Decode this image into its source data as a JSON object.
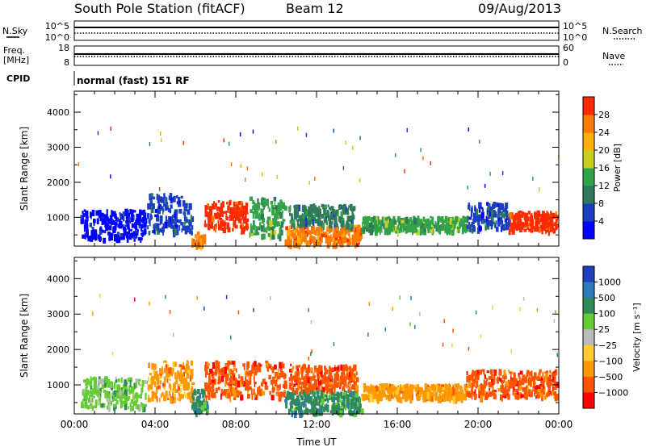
{
  "header": {
    "station": "South Pole Station (fitACF)",
    "beam": "Beam 12",
    "date": "09/Aug/2013"
  },
  "top_panels": {
    "nsky_label": "N.Sky",
    "nsky_ticks": [
      "10^5",
      "10^0"
    ],
    "nsearch_label": "N.Search",
    "nsearch_ticks": [
      "10^5",
      "10^0"
    ],
    "freq_label_1": "Freq.",
    "freq_label_2": "[MHz]",
    "freq_ticks": [
      "18",
      "8"
    ],
    "nave_label": "Nave",
    "nave_ticks": [
      "60",
      "0"
    ],
    "cpid_label": "CPID",
    "cpid_text": "normal (fast) 151 RF"
  },
  "chart_data": [
    {
      "type": "heatmap",
      "name": "power",
      "ylabel": "Slant Range [km]",
      "xlabel": "",
      "x_ticks": [
        "00:00",
        "04:00",
        "08:00",
        "12:00",
        "16:00",
        "20:00",
        "00:00"
      ],
      "xlim_hours": [
        0,
        24
      ],
      "y_ticks": [
        1000,
        2000,
        3000,
        4000
      ],
      "ylim": [
        180,
        4600
      ],
      "colorbar": {
        "label": "Power [dB]",
        "ticks": [
          "4",
          "8",
          "12",
          "16",
          "20",
          "24",
          "28"
        ],
        "colors": [
          "#0000ff",
          "#1b3fbf",
          "#2e7a5a",
          "#33a34a",
          "#c8cf1e",
          "#ffb000",
          "#ff7a00",
          "#ff2a00"
        ]
      },
      "bands": [
        {
          "t0": 0.3,
          "t1": 3.5,
          "r0": 400,
          "r1": 1250,
          "color_index": 0
        },
        {
          "t0": 3.6,
          "t1": 5.8,
          "r0": 600,
          "r1": 1700,
          "color_index": 1
        },
        {
          "t0": 5.8,
          "t1": 6.4,
          "r0": 250,
          "r1": 600,
          "color_index": 6
        },
        {
          "t0": 6.4,
          "t1": 8.6,
          "r0": 700,
          "r1": 1500,
          "color_index": 7
        },
        {
          "t0": 8.6,
          "t1": 10.4,
          "r0": 500,
          "r1": 1600,
          "color_index": 3
        },
        {
          "t0": 10.4,
          "t1": 14.2,
          "r0": 250,
          "r1": 800,
          "color_index": 6
        },
        {
          "t0": 10.6,
          "t1": 13.8,
          "r0": 800,
          "r1": 1400,
          "color_index": 2
        },
        {
          "t0": 14.2,
          "t1": 19.4,
          "r0": 650,
          "r1": 1050,
          "color_index": 3
        },
        {
          "t0": 19.4,
          "t1": 21.5,
          "r0": 700,
          "r1": 1450,
          "color_index": 1
        },
        {
          "t0": 21.5,
          "t1": 23.9,
          "r0": 650,
          "r1": 1200,
          "color_index": 7
        }
      ]
    },
    {
      "type": "heatmap",
      "name": "velocity",
      "ylabel": "Slant Range [km]",
      "xlabel": "Time UT",
      "x_ticks": [
        "00:00",
        "04:00",
        "08:00",
        "12:00",
        "16:00",
        "20:00",
        "00:00"
      ],
      "xlim_hours": [
        0,
        24
      ],
      "y_ticks": [
        1000,
        2000,
        3000,
        4000
      ],
      "ylim": [
        180,
        4600
      ],
      "colorbar": {
        "label": "Velocity [m s⁻¹]",
        "ticks": [
          "1000",
          "500",
          "100",
          "25",
          "−25",
          "−100",
          "−500",
          "−1000"
        ],
        "colors": [
          "#1f3fbf",
          "#2b7cb8",
          "#2e8b57",
          "#66cc33",
          "#bbbbbb",
          "#ffcc33",
          "#ff9900",
          "#ff5500",
          "#ff0000"
        ]
      },
      "bands": [
        {
          "t0": 0.3,
          "t1": 3.5,
          "r0": 400,
          "r1": 1250,
          "color_index": 3
        },
        {
          "t0": 3.6,
          "t1": 5.8,
          "r0": 600,
          "r1": 1700,
          "color_index": 6
        },
        {
          "t0": 5.8,
          "t1": 6.6,
          "r0": 250,
          "r1": 900,
          "color_index": 2
        },
        {
          "t0": 6.4,
          "t1": 10.4,
          "r0": 700,
          "r1": 1700,
          "color_index": 7
        },
        {
          "t0": 10.4,
          "t1": 14.2,
          "r0": 250,
          "r1": 900,
          "color_index": 2
        },
        {
          "t0": 10.6,
          "t1": 14.0,
          "r0": 900,
          "r1": 1600,
          "color_index": 7
        },
        {
          "t0": 14.2,
          "t1": 19.4,
          "r0": 650,
          "r1": 1050,
          "color_index": 6
        },
        {
          "t0": 19.4,
          "t1": 23.9,
          "r0": 700,
          "r1": 1450,
          "color_index": 7
        }
      ]
    }
  ]
}
